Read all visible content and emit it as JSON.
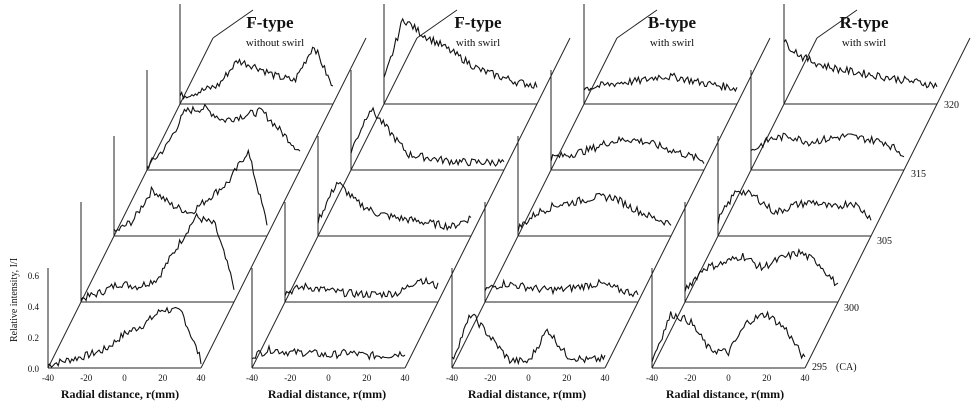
{
  "y_axis_label": "Relative intensity, I/I",
  "y_ticks": [
    "0.0",
    "0.2",
    "0.4",
    "0.6"
  ],
  "x_axis_label": "Radial distance, r(mm)",
  "x_ticks": [
    "-40",
    "-20",
    "0",
    "20",
    "40"
  ],
  "depth_labels": [
    "295",
    "300",
    "305",
    "315",
    "320"
  ],
  "depth_unit": "(CA)",
  "panels": [
    {
      "title": "F-type",
      "subtitle": "without swirl"
    },
    {
      "title": "F-type",
      "subtitle": "with swirl"
    },
    {
      "title": "B-type",
      "subtitle": "with swirl"
    },
    {
      "title": "R-type",
      "subtitle": "with swirl"
    }
  ],
  "chart_data": {
    "type": "line",
    "title": "",
    "xlabel": "Radial distance, r(mm)",
    "ylabel": "Relative intensity, I/I",
    "xlim": [
      -40,
      40
    ],
    "ylim": [
      0,
      0.6
    ],
    "depth_axis": {
      "label": "(CA)",
      "values": [
        295,
        300,
        305,
        315,
        320
      ]
    },
    "x": [
      -40,
      -30,
      -20,
      -10,
      0,
      10,
      20,
      30,
      40
    ],
    "panels": [
      {
        "title": "F-type without swirl",
        "series": [
          {
            "ca": 295,
            "values": [
              0.02,
              0.05,
              0.08,
              0.12,
              0.22,
              0.28,
              0.38,
              0.36,
              0.05
            ]
          },
          {
            "ca": 300,
            "values": [
              0.02,
              0.06,
              0.12,
              0.1,
              0.15,
              0.35,
              0.55,
              0.5,
              0.1
            ]
          },
          {
            "ca": 305,
            "values": [
              0.02,
              0.1,
              0.3,
              0.2,
              0.15,
              0.25,
              0.35,
              0.55,
              0.08
            ]
          },
          {
            "ca": 315,
            "values": [
              0.02,
              0.15,
              0.38,
              0.4,
              0.32,
              0.35,
              0.38,
              0.25,
              0.12
            ]
          },
          {
            "ca": 320,
            "values": [
              0.05,
              0.08,
              0.12,
              0.28,
              0.24,
              0.18,
              0.15,
              0.38,
              0.1
            ]
          }
        ]
      },
      {
        "title": "F-type with swirl",
        "series": [
          {
            "ca": 295,
            "values": [
              0.08,
              0.12,
              0.1,
              0.1,
              0.08,
              0.1,
              0.08,
              0.08,
              0.1
            ]
          },
          {
            "ca": 300,
            "values": [
              0.06,
              0.1,
              0.08,
              0.06,
              0.05,
              0.05,
              0.06,
              0.15,
              0.1
            ]
          },
          {
            "ca": 305,
            "values": [
              0.1,
              0.35,
              0.22,
              0.15,
              0.12,
              0.1,
              0.08,
              0.06,
              0.12
            ]
          },
          {
            "ca": 315,
            "values": [
              0.12,
              0.4,
              0.25,
              0.1,
              0.08,
              0.06,
              0.05,
              0.05,
              0.05
            ]
          },
          {
            "ca": 320,
            "values": [
              0.15,
              0.55,
              0.45,
              0.38,
              0.3,
              0.22,
              0.18,
              0.14,
              0.12
            ]
          }
        ]
      },
      {
        "title": "B-type with swirl",
        "series": [
          {
            "ca": 295,
            "values": [
              0.05,
              0.35,
              0.2,
              0.05,
              0.04,
              0.25,
              0.08,
              0.05,
              0.06
            ]
          },
          {
            "ca": 300,
            "values": [
              0.08,
              0.12,
              0.1,
              0.08,
              0.08,
              0.1,
              0.12,
              0.08,
              0.05
            ]
          },
          {
            "ca": 305,
            "values": [
              0.05,
              0.15,
              0.2,
              0.22,
              0.25,
              0.25,
              0.18,
              0.12,
              0.08
            ]
          },
          {
            "ca": 315,
            "values": [
              0.08,
              0.1,
              0.13,
              0.18,
              0.2,
              0.18,
              0.14,
              0.1,
              0.06
            ]
          },
          {
            "ca": 320,
            "values": [
              0.1,
              0.12,
              0.14,
              0.15,
              0.18,
              0.17,
              0.14,
              0.12,
              0.1
            ]
          }
        ]
      },
      {
        "title": "R-type with swirl",
        "series": [
          {
            "ca": 295,
            "values": [
              0.05,
              0.35,
              0.3,
              0.12,
              0.1,
              0.3,
              0.35,
              0.25,
              0.05
            ]
          },
          {
            "ca": 300,
            "values": [
              0.08,
              0.22,
              0.25,
              0.3,
              0.22,
              0.28,
              0.32,
              0.25,
              0.1
            ]
          },
          {
            "ca": 305,
            "values": [
              0.1,
              0.3,
              0.25,
              0.15,
              0.2,
              0.22,
              0.18,
              0.22,
              0.12
            ]
          },
          {
            "ca": 315,
            "values": [
              0.12,
              0.2,
              0.22,
              0.18,
              0.2,
              0.22,
              0.2,
              0.18,
              0.1
            ]
          },
          {
            "ca": 320,
            "values": [
              0.4,
              0.3,
              0.25,
              0.22,
              0.2,
              0.18,
              0.16,
              0.14,
              0.12
            ]
          }
        ]
      }
    ]
  }
}
